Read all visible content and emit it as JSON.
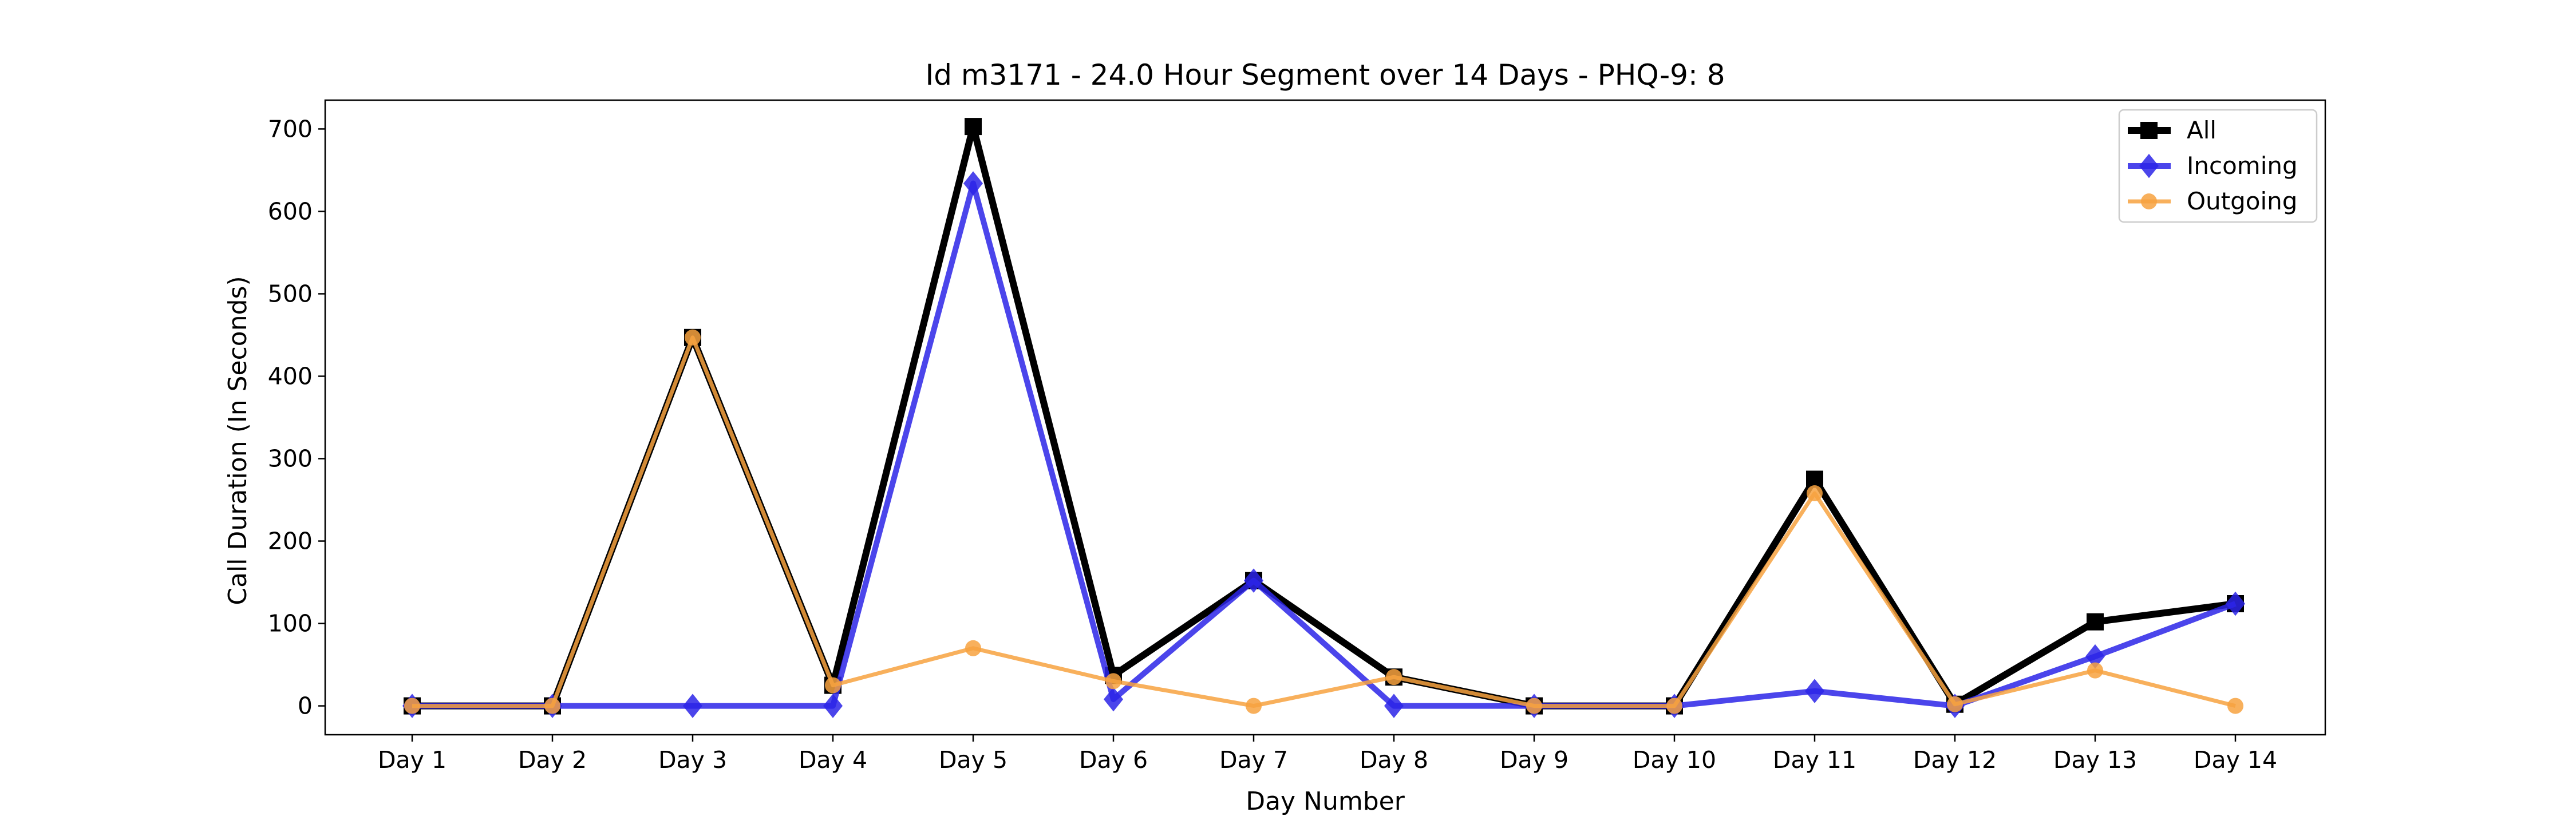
{
  "chart_data": {
    "type": "line",
    "title": "Id m3171 - 24.0 Hour Segment over 14 Days - PHQ-9: 8",
    "xlabel": "Day Number",
    "ylabel": "Call Duration (In Seconds)",
    "categories": [
      "Day 1",
      "Day 2",
      "Day 3",
      "Day 4",
      "Day 5",
      "Day 6",
      "Day 7",
      "Day 8",
      "Day 9",
      "Day 10",
      "Day 11",
      "Day 12",
      "Day 13",
      "Day 14"
    ],
    "ylim": [
      -35,
      735
    ],
    "yticks": [
      0,
      100,
      200,
      300,
      400,
      500,
      600,
      700
    ],
    "grid": false,
    "legend_position": "top-right",
    "series": [
      {
        "name": "All",
        "color": "#000000",
        "marker": "square",
        "values": [
          0,
          0,
          447,
          25,
          703,
          37,
          152,
          35,
          0,
          0,
          275,
          2,
          102,
          124
        ]
      },
      {
        "name": "Incoming",
        "color": "#2b24e8",
        "marker": "diamond",
        "values": [
          0,
          0,
          0,
          0,
          634,
          8,
          152,
          0,
          0,
          0,
          18,
          0,
          60,
          124
        ]
      },
      {
        "name": "Outgoing",
        "color": "#f7a23f",
        "marker": "circle",
        "values": [
          0,
          0,
          447,
          25,
          70,
          30,
          0,
          35,
          0,
          0,
          258,
          2,
          43,
          0
        ]
      }
    ]
  }
}
